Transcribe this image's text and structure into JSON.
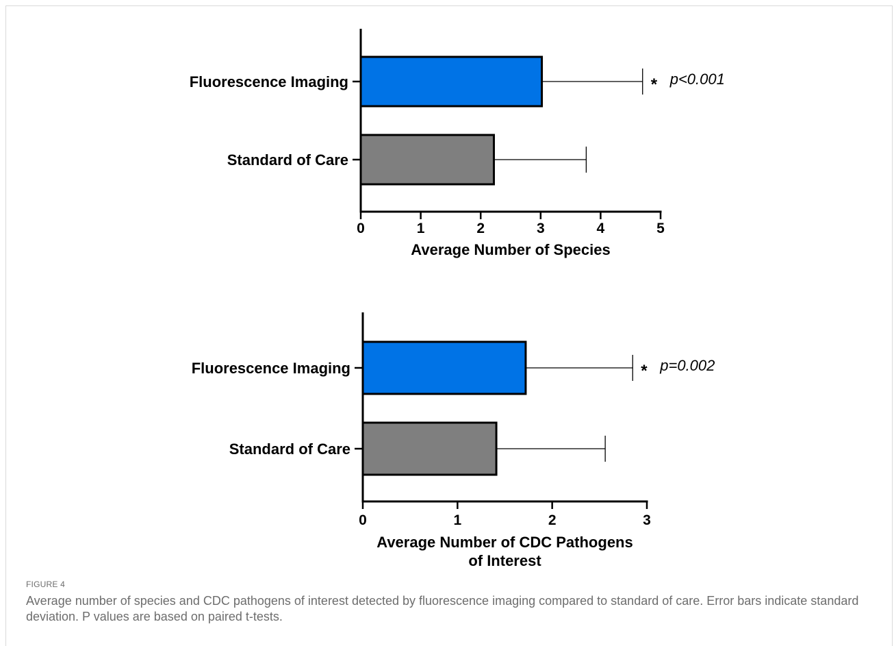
{
  "figure_label": "FIGURE 4",
  "caption": "Average number of species and CDC pathogens of interest detected by fluorescence imaging compared to standard of care. Error bars indicate standard deviation. P values are based on paired t-tests.",
  "colors": {
    "fluorescence": "#0073e6",
    "standard": "#7f7f7f",
    "axis": "#000000"
  },
  "chart_data": [
    {
      "type": "bar",
      "orientation": "horizontal",
      "categories": [
        "Fluorescence Imaging",
        "Standard of Care"
      ],
      "values": [
        3.02,
        2.22
      ],
      "error": [
        1.68,
        1.54
      ],
      "xlabel": "Average Number of Species",
      "xlim": [
        0,
        5
      ],
      "ticks": [
        "0",
        "1",
        "2",
        "3",
        "4",
        "5"
      ],
      "significance": {
        "marker": "*",
        "text": "p<0.001"
      }
    },
    {
      "type": "bar",
      "orientation": "horizontal",
      "categories": [
        "Fluorescence Imaging",
        "Standard of Care"
      ],
      "values": [
        1.72,
        1.41
      ],
      "error": [
        1.13,
        1.15
      ],
      "xlabel": "Average Number of CDC Pathogens of Interest",
      "xlabel_lines": [
        "Average Number of CDC Pathogens",
        "of Interest"
      ],
      "xlim": [
        0,
        3
      ],
      "ticks": [
        "0",
        "1",
        "2",
        "3"
      ],
      "significance": {
        "marker": "*",
        "text": "p=0.002"
      }
    }
  ]
}
